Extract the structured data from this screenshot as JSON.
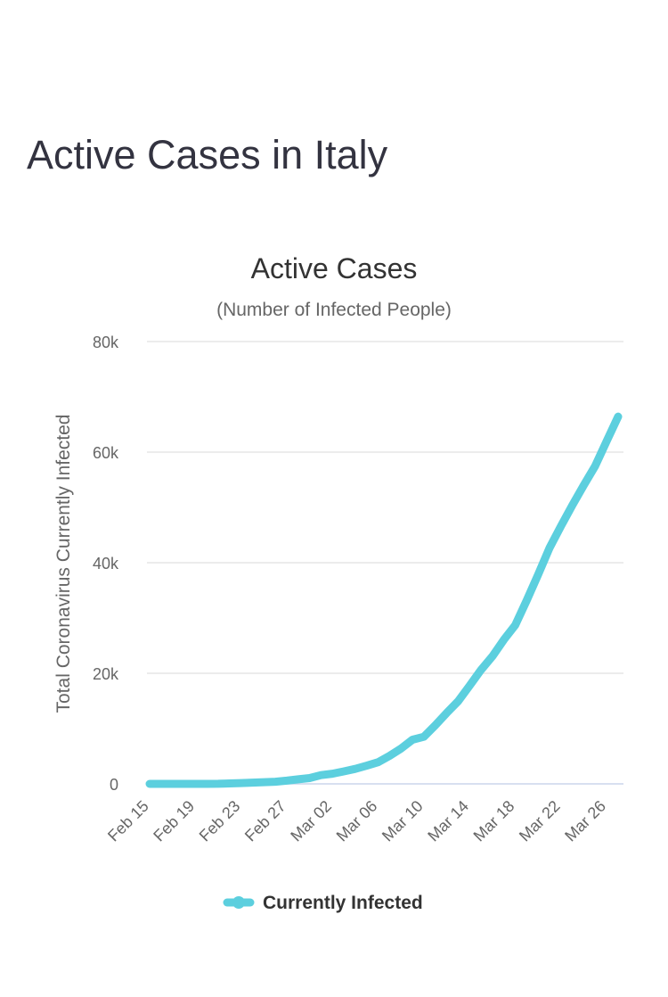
{
  "page": {
    "heading": "Active Cases in Italy"
  },
  "colors": {
    "series": "#5ccfde",
    "grid": "#e6e6e6",
    "axis": "#ccd6eb",
    "heading": "#333340",
    "tick": "#666666"
  },
  "chart_data": {
    "type": "line",
    "title": "Active Cases",
    "subtitle": "(Number of Infected People)",
    "ylabel": "Total Coronavirus Currently Infected",
    "xlabel": "",
    "ylim": [
      0,
      80000
    ],
    "yticks": [
      0,
      20000,
      40000,
      60000,
      80000
    ],
    "ytick_labels": [
      "0",
      "20k",
      "40k",
      "60k",
      "80k"
    ],
    "xtick_labels": [
      "Feb 15",
      "Feb 19",
      "Feb 23",
      "Feb 27",
      "Mar 02",
      "Mar 06",
      "Mar 10",
      "Mar 14",
      "Mar 18",
      "Mar 22",
      "Mar 26"
    ],
    "grid": true,
    "legend_position": "bottom-center",
    "series": [
      {
        "name": "Currently Infected",
        "x": [
          "Feb 15",
          "Feb 16",
          "Feb 17",
          "Feb 18",
          "Feb 19",
          "Feb 20",
          "Feb 21",
          "Feb 22",
          "Feb 23",
          "Feb 24",
          "Feb 25",
          "Feb 26",
          "Feb 27",
          "Feb 28",
          "Feb 29",
          "Mar 01",
          "Mar 02",
          "Mar 03",
          "Mar 04",
          "Mar 05",
          "Mar 06",
          "Mar 07",
          "Mar 08",
          "Mar 09",
          "Mar 10",
          "Mar 11",
          "Mar 12",
          "Mar 13",
          "Mar 14",
          "Mar 15",
          "Mar 16",
          "Mar 17",
          "Mar 18",
          "Mar 19",
          "Mar 20",
          "Mar 21",
          "Mar 22",
          "Mar 23",
          "Mar 24",
          "Mar 25",
          "Mar 26",
          "Mar 27"
        ],
        "values": [
          3,
          3,
          3,
          3,
          3,
          3,
          20,
          79,
          150,
          221,
          311,
          385,
          588,
          821,
          1049,
          1577,
          1835,
          2263,
          2706,
          3296,
          3916,
          5061,
          6387,
          7985,
          8514,
          10590,
          12839,
          14955,
          17750,
          20603,
          23073,
          26062,
          28710,
          33190,
          37860,
          42681,
          46638,
          50418,
          54030,
          57521,
          62013,
          66414
        ]
      }
    ]
  }
}
